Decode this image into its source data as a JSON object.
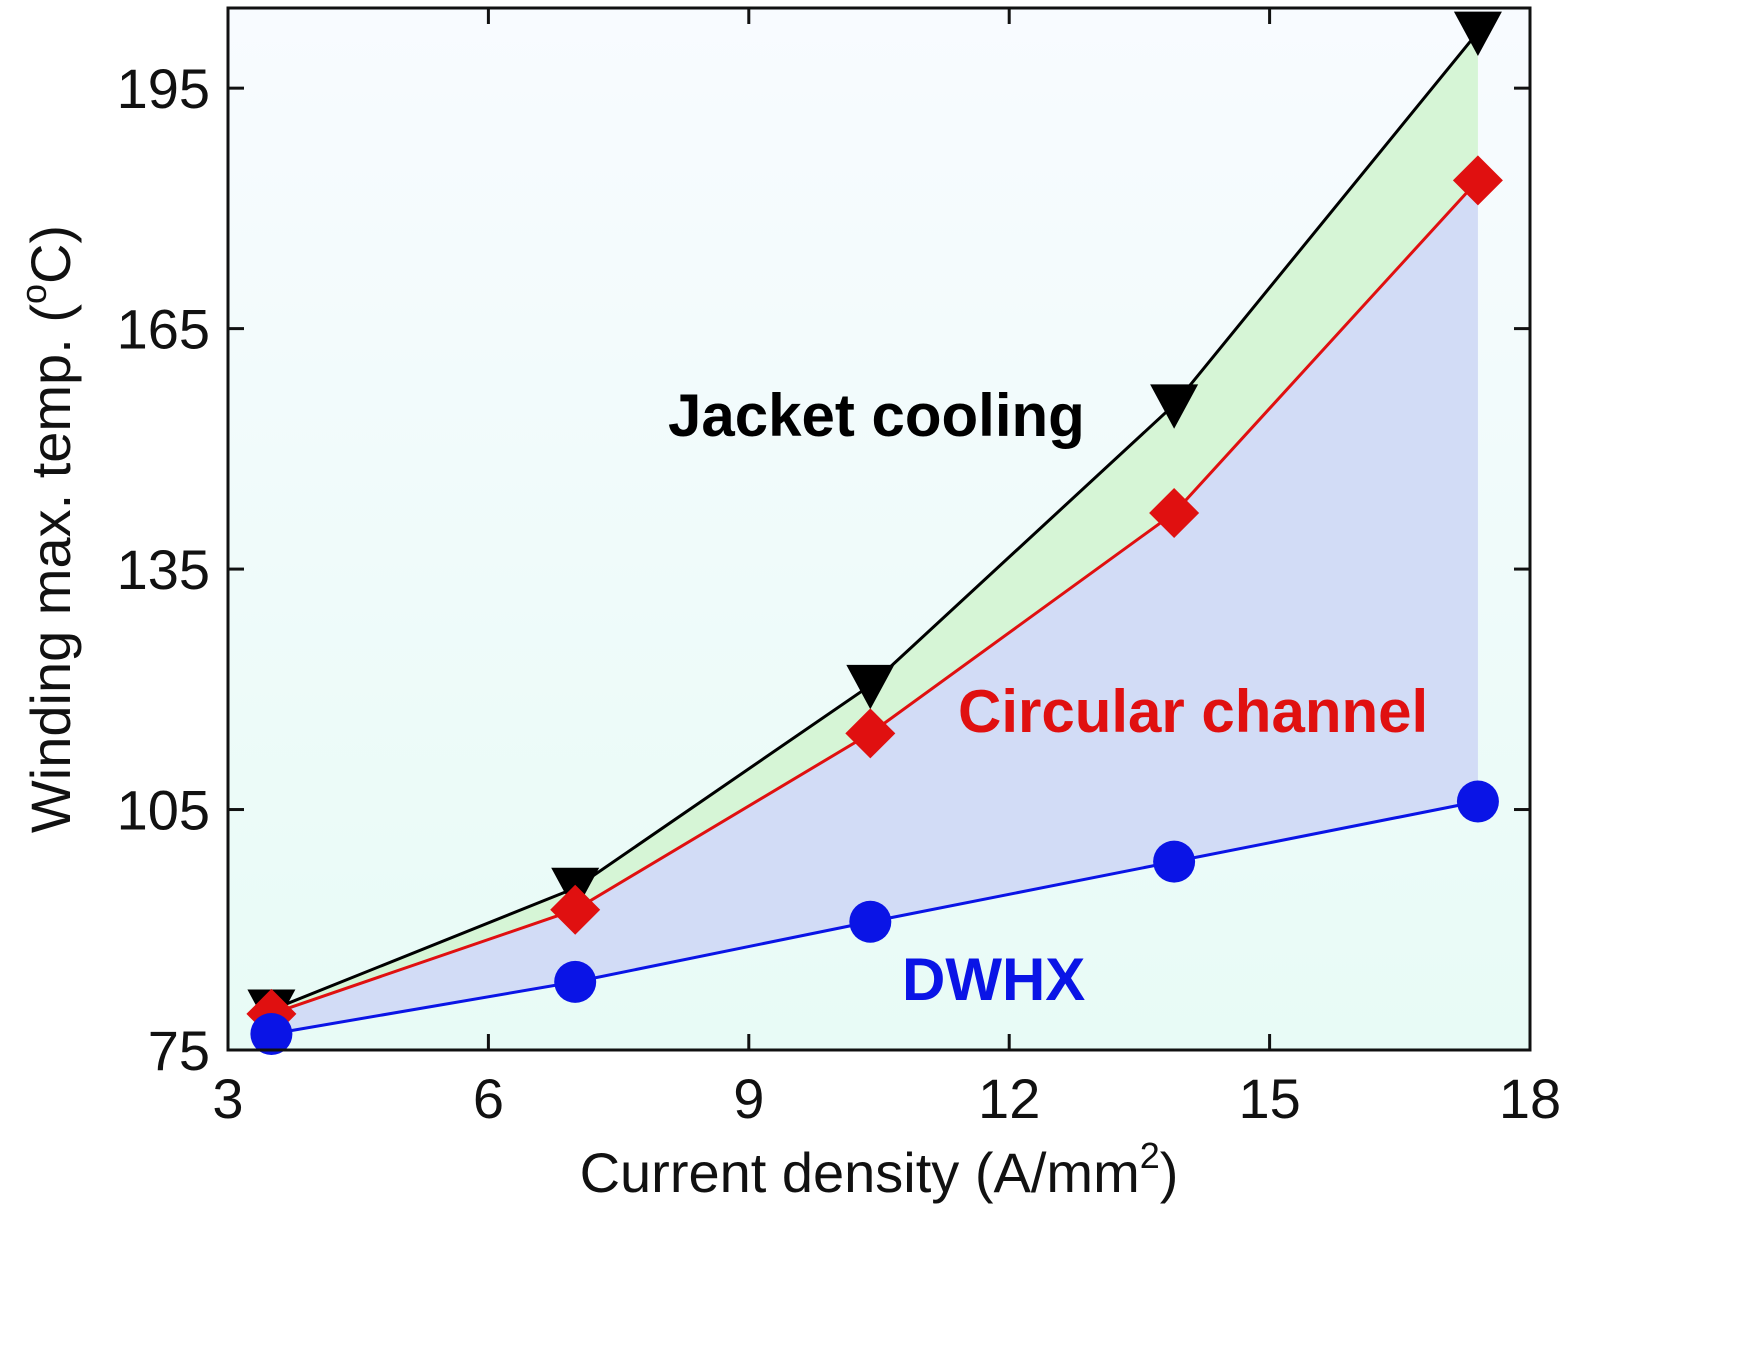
{
  "chart_data": {
    "type": "line",
    "xlabel": "Current density (A/mm",
    "xlabel_sup": "2",
    "xlabel_end": ")",
    "ylabel": "Winding max. temp. (",
    "ylabel_sup": "o",
    "ylabel_end": "C)",
    "xlim": [
      3,
      18
    ],
    "ylim": [
      75,
      205
    ],
    "xticks": [
      3,
      6,
      9,
      12,
      15,
      18
    ],
    "xtick_labels": [
      "3",
      "6",
      "9",
      "12",
      "15",
      "18"
    ],
    "yticks": [
      75,
      105,
      135,
      165,
      195
    ],
    "ytick_labels": [
      "75",
      "105",
      "135",
      "165",
      "195"
    ],
    "grid": false,
    "x": [
      3.5,
      7.0,
      10.4,
      13.9,
      17.4
    ],
    "series": [
      {
        "name": "Jacket cooling",
        "color": "#000000",
        "marker": "triangle-down",
        "values": [
          80.0,
          95.2,
          120.5,
          155.5,
          202.0
        ]
      },
      {
        "name": "Circular channel",
        "color": "#e01010",
        "marker": "diamond",
        "values": [
          79.5,
          92.5,
          114.5,
          142.0,
          183.5
        ]
      },
      {
        "name": "DWHX",
        "color": "#0a14e6",
        "marker": "circle",
        "values": [
          77.0,
          83.5,
          91.0,
          98.5,
          106.0
        ]
      }
    ],
    "fills": {
      "green": "#d6f5d6",
      "blue": "#d2dcf6",
      "background_top": "#f8fbff",
      "background_bottom": "#e8fbf6"
    }
  }
}
